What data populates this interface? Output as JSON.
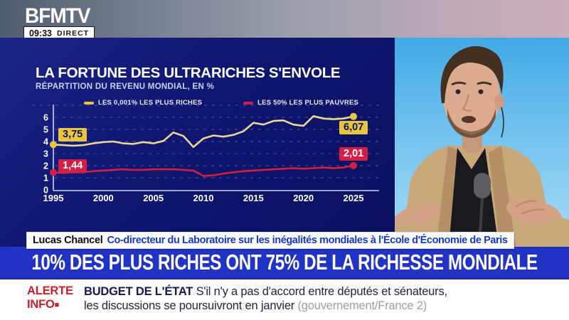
{
  "channel": {
    "logo": "BFMTV",
    "time": "09:33",
    "live_label": "DIRECT"
  },
  "chart_panel": {
    "title": "LA FORTUNE DES ULTRARICHES S'ENVOLE",
    "subtitle": "RÉPARTITION DU REVENU MONDIAL, EN %"
  },
  "chart_data": {
    "type": "line",
    "title": "LA FORTUNE DES ULTRARICHES S'ENVOLE",
    "subtitle": "RÉPARTITION DU REVENU MONDIAL, EN %",
    "x": [
      1995,
      1996,
      1997,
      1998,
      1999,
      2000,
      2001,
      2002,
      2003,
      2004,
      2005,
      2006,
      2007,
      2008,
      2009,
      2010,
      2011,
      2012,
      2013,
      2014,
      2015,
      2016,
      2017,
      2018,
      2019,
      2020,
      2021,
      2022,
      2023,
      2024,
      2025
    ],
    "series": [
      {
        "name": "LES 0,001% LES PLUS RICHES",
        "accent_color": "#e8c53c",
        "line_color": "#ead592",
        "values": [
          3.75,
          3.7,
          3.65,
          3.7,
          3.85,
          3.95,
          4.0,
          3.85,
          3.8,
          3.95,
          3.85,
          4.05,
          4.75,
          4.45,
          3.55,
          4.25,
          4.5,
          4.4,
          4.55,
          4.85,
          5.55,
          5.4,
          5.7,
          5.75,
          5.4,
          5.3,
          6.1,
          5.9,
          5.85,
          5.9,
          6.07
        ],
        "start_label": "3,75",
        "end_label": "6,07"
      },
      {
        "name": "LES 50% LES PLUS PAUVRES",
        "accent_color": "#d41e44",
        "line_color": "#d41e44",
        "values": [
          1.44,
          1.4,
          1.45,
          1.45,
          1.55,
          1.6,
          1.65,
          1.7,
          1.65,
          1.65,
          1.7,
          1.7,
          1.7,
          1.65,
          1.6,
          1.15,
          1.2,
          1.35,
          1.45,
          1.55,
          1.6,
          1.65,
          1.7,
          1.75,
          1.8,
          1.75,
          1.8,
          1.85,
          1.8,
          1.85,
          2.01
        ],
        "start_label": "1,44",
        "end_label": "2,01"
      }
    ],
    "x_ticks": [
      1995,
      2000,
      2005,
      2010,
      2015,
      2020,
      2025
    ],
    "y_ticks": [
      0,
      1,
      2,
      3,
      4,
      5,
      6
    ],
    "ylim": [
      0,
      7
    ],
    "grid": "dashed horizontal",
    "legend_position": "top"
  },
  "guest_banner": {
    "name": "Lucas Chancel",
    "role": "Co-directeur du Laboratoire sur les inégalités mondiales à l'École d'Économie de Paris"
  },
  "headline": "10% DES PLUS RICHES ONT 75% DE LA RICHESSE MONDIALE",
  "ticker": {
    "alert_line1": "ALERTE",
    "alert_line2": "INFO",
    "category": "BUDGET DE L'ÉTAT",
    "line1": "S'il n'y a pas d'accord entre députés et sénateurs,",
    "line2": "les discussions se poursuivront en janvier",
    "attribution": "(gouvernement/France 2)"
  },
  "colors": {
    "headline_band": "#2133c4",
    "panel_navy": "#0e1670",
    "alert_red": "#cc1f2d",
    "rich_yellow": "#e8c53c",
    "poor_red": "#d41e44"
  }
}
